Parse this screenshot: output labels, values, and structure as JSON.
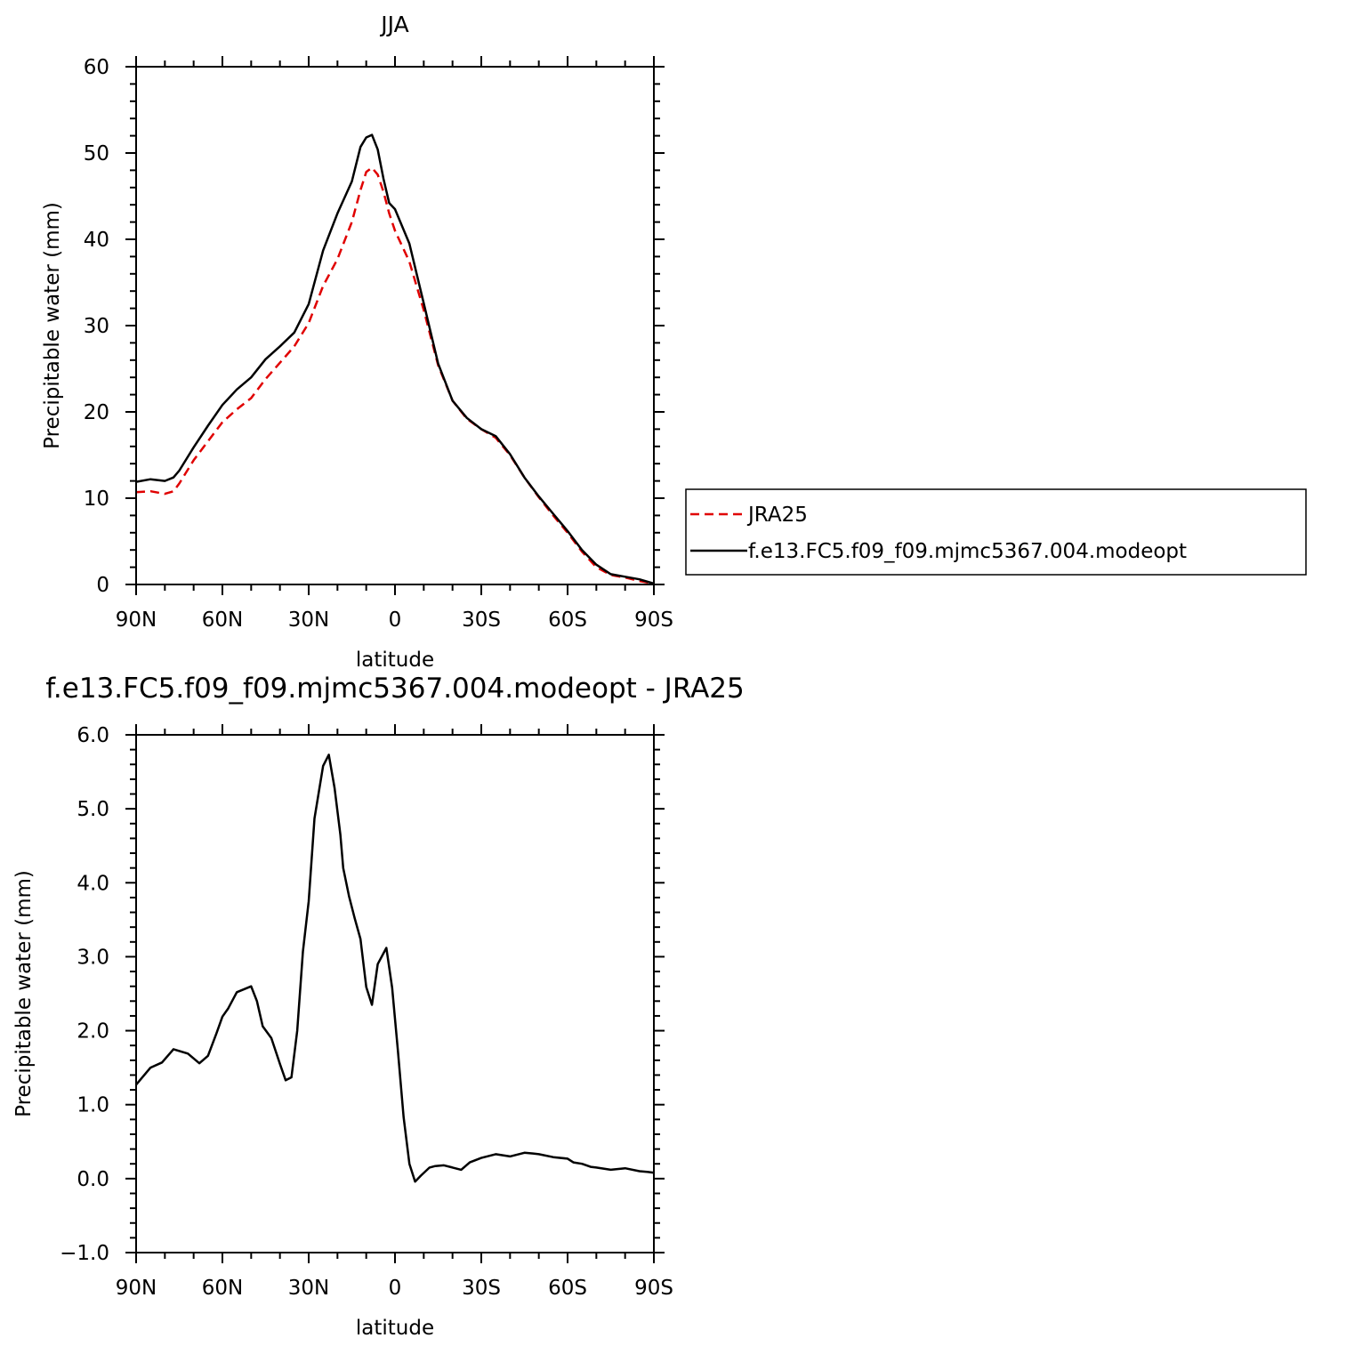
{
  "chart_data": [
    {
      "type": "line",
      "title": "JJA",
      "xlabel": "latitude",
      "ylabel": "Precipitable water (mm)",
      "xlim": [
        90,
        -90
      ],
      "ylim": [
        0,
        60
      ],
      "x_ticks": [
        90,
        60,
        30,
        0,
        -30,
        -60,
        -90
      ],
      "x_tick_labels": [
        "90N",
        "60N",
        "30N",
        "0",
        "30S",
        "60S",
        "90S"
      ],
      "y_ticks": [
        0,
        10,
        20,
        30,
        40,
        50,
        60
      ],
      "y_tick_labels": [
        "0",
        "10",
        "20",
        "30",
        "40",
        "50",
        "60"
      ],
      "legend": {
        "placement": "right",
        "entries": [
          {
            "label": "JRA25",
            "color": "#e00000",
            "style": "dashed"
          },
          {
            "label": "f.e13.FC5.f09_f09.mjmc5367.004.modeopt",
            "color": "#000000",
            "style": "solid"
          }
        ]
      },
      "series": [
        {
          "name": "JRA25",
          "color": "#e00000",
          "style": "dashed",
          "x": [
            90,
            85,
            80,
            77,
            75,
            70,
            65,
            60,
            55,
            50,
            45,
            40,
            35,
            30,
            25,
            20,
            15,
            12,
            10,
            8,
            6,
            4,
            2,
            0,
            -5,
            -10,
            -15,
            -20,
            -25,
            -30,
            -35,
            -40,
            -45,
            -50,
            -55,
            -60,
            -65,
            -70,
            -75,
            -80,
            -85,
            -90
          ],
          "y": [
            10.7,
            10.8,
            10.5,
            10.8,
            11.7,
            14.4,
            16.6,
            18.8,
            20.3,
            21.6,
            23.8,
            25.7,
            27.6,
            30.3,
            34.6,
            37.7,
            42,
            45.7,
            47.8,
            48.3,
            47.5,
            45.5,
            43,
            41,
            37.4,
            31.8,
            25.4,
            21.3,
            19.2,
            18,
            17,
            15,
            12.4,
            10.1,
            8,
            6,
            3.8,
            2,
            1.1,
            0.8,
            0.4,
            0.1
          ]
        },
        {
          "name": "f.e13.FC5.f09_f09.mjmc5367.004.modeopt",
          "color": "#000000",
          "style": "solid",
          "x": [
            90,
            85,
            80,
            77,
            75,
            70,
            65,
            60,
            55,
            50,
            45,
            40,
            35,
            30,
            25,
            20,
            15,
            12,
            10,
            8,
            6,
            4,
            2,
            0,
            -5,
            -10,
            -15,
            -20,
            -25,
            -30,
            -35,
            -40,
            -45,
            -50,
            -55,
            -60,
            -65,
            -70,
            -75,
            -80,
            -85,
            -90
          ],
          "y": [
            11.9,
            12.2,
            12,
            12.4,
            13.2,
            15.9,
            18.4,
            20.8,
            22.6,
            24,
            26.1,
            27.6,
            29.2,
            32.5,
            38.7,
            43,
            46.7,
            50.7,
            51.8,
            52.1,
            50.4,
            47,
            44.2,
            43.5,
            39.5,
            32.6,
            25.6,
            21.3,
            19.3,
            18,
            17.2,
            15.1,
            12.4,
            10.2,
            8.2,
            6.2,
            4,
            2.3,
            1.2,
            0.9,
            0.6,
            0.1
          ]
        }
      ]
    },
    {
      "type": "line",
      "title": "f.e13.FC5.f09_f09.mjmc5367.004.modeopt - JRA25",
      "xlabel": "latitude",
      "ylabel": "Precipitable water (mm)",
      "xlim": [
        90,
        -90
      ],
      "ylim": [
        -1.0,
        6.0
      ],
      "x_ticks": [
        90,
        60,
        30,
        0,
        -30,
        -60,
        -90
      ],
      "x_tick_labels": [
        "90N",
        "60N",
        "30N",
        "0",
        "30S",
        "60S",
        "90S"
      ],
      "y_ticks": [
        -1.0,
        0.0,
        1.0,
        2.0,
        3.0,
        4.0,
        5.0,
        6.0
      ],
      "y_tick_labels": [
        "−1.0",
        "0.0",
        "1.0",
        "2.0",
        "3.0",
        "4.0",
        "5.0",
        "6.0"
      ],
      "series": [
        {
          "color": "#000000",
          "style": "solid",
          "x": [
            90,
            85,
            81,
            77,
            72,
            68,
            65,
            62,
            60,
            58,
            55,
            50,
            48,
            46,
            43,
            40,
            38,
            36,
            34,
            32,
            30,
            28,
            25,
            23,
            21,
            19,
            18,
            16,
            14,
            12,
            10,
            8,
            6,
            3,
            1,
            -1,
            -3,
            -5,
            -7,
            -9,
            -12,
            -14,
            -17,
            -20,
            -23,
            -26,
            -30,
            -35,
            -40,
            -45,
            -48,
            -50,
            -55,
            -60,
            -62,
            -65,
            -68,
            -70,
            -75,
            -80,
            -85,
            -88,
            -90
          ],
          "y": [
            1.27,
            1.5,
            1.57,
            1.75,
            1.69,
            1.56,
            1.66,
            1.97,
            2.19,
            2.3,
            2.52,
            2.6,
            2.4,
            2.06,
            1.9,
            1.55,
            1.33,
            1.37,
            2.0,
            3.07,
            3.75,
            4.87,
            5.58,
            5.73,
            5.28,
            4.65,
            4.2,
            3.82,
            3.52,
            3.24,
            2.59,
            2.35,
            2.9,
            3.12,
            2.58,
            1.74,
            0.83,
            0.2,
            -0.04,
            0.04,
            0.15,
            0.17,
            0.18,
            0.15,
            0.12,
            0.22,
            0.28,
            0.33,
            0.3,
            0.35,
            0.34,
            0.33,
            0.29,
            0.27,
            0.22,
            0.2,
            0.16,
            0.15,
            0.12,
            0.14,
            0.1,
            0.09,
            0.08
          ]
        }
      ]
    }
  ]
}
